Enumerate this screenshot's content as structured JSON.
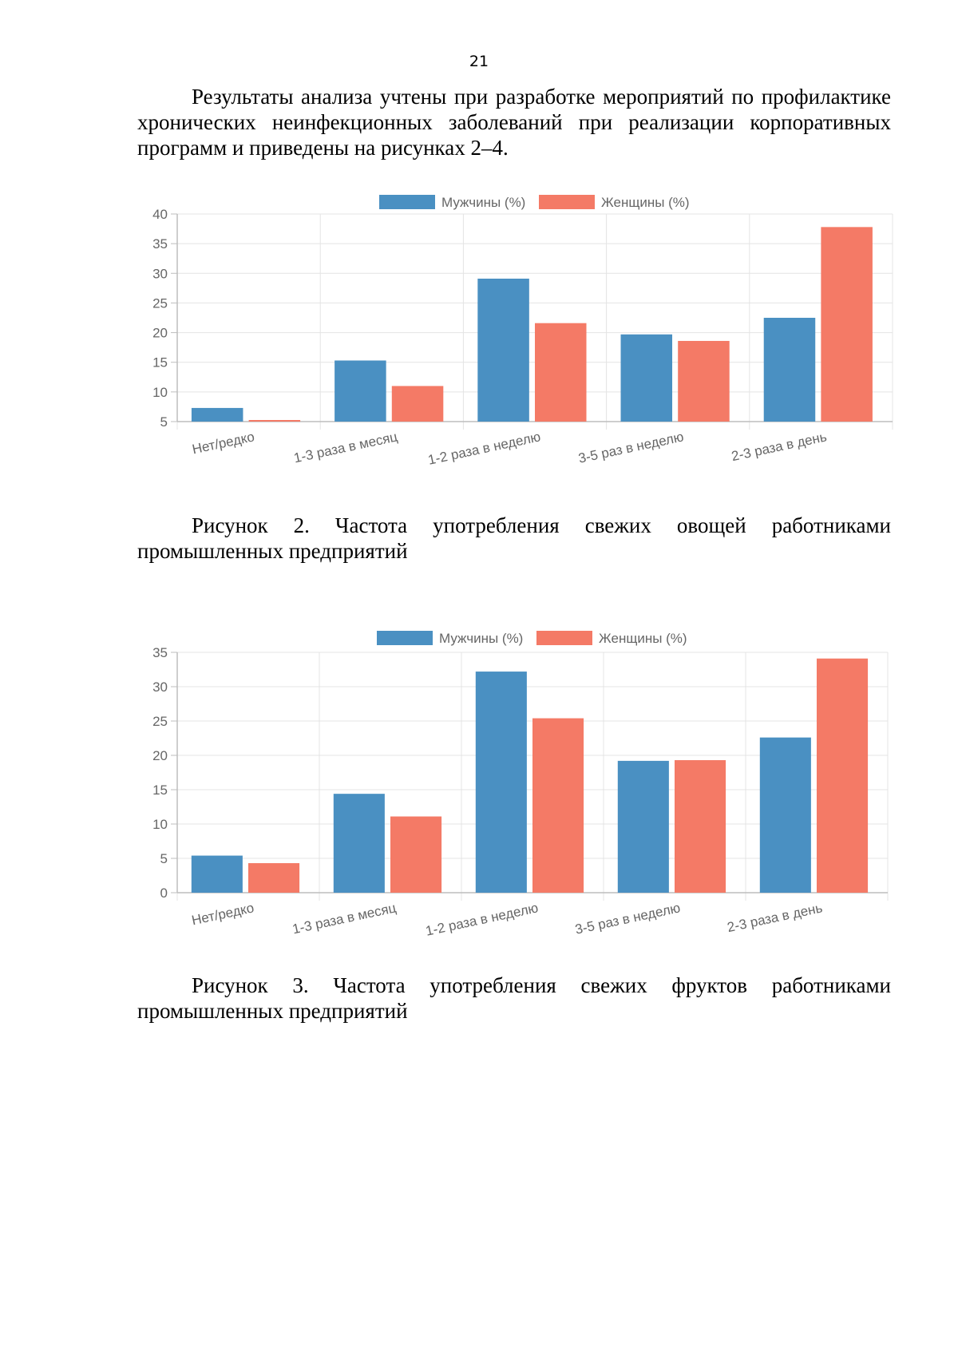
{
  "page": {
    "number": "21",
    "intro": "Результаты анализа учтены при разработке мероприятий по профилактике хронических неинфекционных заболеваний при реализации корпоративных программ и  приведены на рисунках 2–4."
  },
  "figures": [
    {
      "caption": "Рисунок 2.  Частота употребления свежих овощей работниками промышленных предприятий"
    },
    {
      "caption": "Рисунок 3. Частота употребления свежих фруктов работниками промышленных предприятий"
    }
  ],
  "colors": {
    "men": "#4a90c2",
    "women": "#f47a66",
    "grid": "#e4e4e4",
    "axis": "#bdbdbd",
    "text": "#666666"
  },
  "chart_data": [
    {
      "type": "bar",
      "title": "",
      "xlabel": "",
      "ylabel": "",
      "categories": [
        "Нет/редко",
        "1-3 раза в месяц",
        "1-2 раза в неделю",
        "3-5 раз в неделю",
        "2-3 раза в день"
      ],
      "series": [
        {
          "name": "Мужчины (%)",
          "values": [
            7.3,
            15.3,
            29.1,
            19.7,
            22.5
          ]
        },
        {
          "name": "Женщины (%)",
          "values": [
            5.1,
            11.0,
            21.6,
            18.6,
            37.8
          ]
        }
      ],
      "ylim": [
        5,
        40
      ],
      "yticks": [
        5,
        10,
        15,
        20,
        25,
        30,
        35,
        40
      ],
      "grid": true,
      "legend": "top-center"
    },
    {
      "type": "bar",
      "title": "",
      "xlabel": "",
      "ylabel": "",
      "categories": [
        "Нет/редко",
        "1-3 раза в месяц",
        "1-2 раза в неделю",
        "3-5 раз в неделю",
        "2-3 раза в день"
      ],
      "series": [
        {
          "name": "Мужчины (%)",
          "values": [
            5.4,
            14.4,
            32.2,
            19.2,
            22.6
          ]
        },
        {
          "name": "Женщины (%)",
          "values": [
            4.3,
            11.1,
            25.4,
            19.3,
            34.1
          ]
        }
      ],
      "ylim": [
        0,
        35
      ],
      "yticks": [
        0,
        5,
        10,
        15,
        20,
        25,
        30,
        35
      ],
      "grid": true,
      "legend": "top-center"
    }
  ]
}
